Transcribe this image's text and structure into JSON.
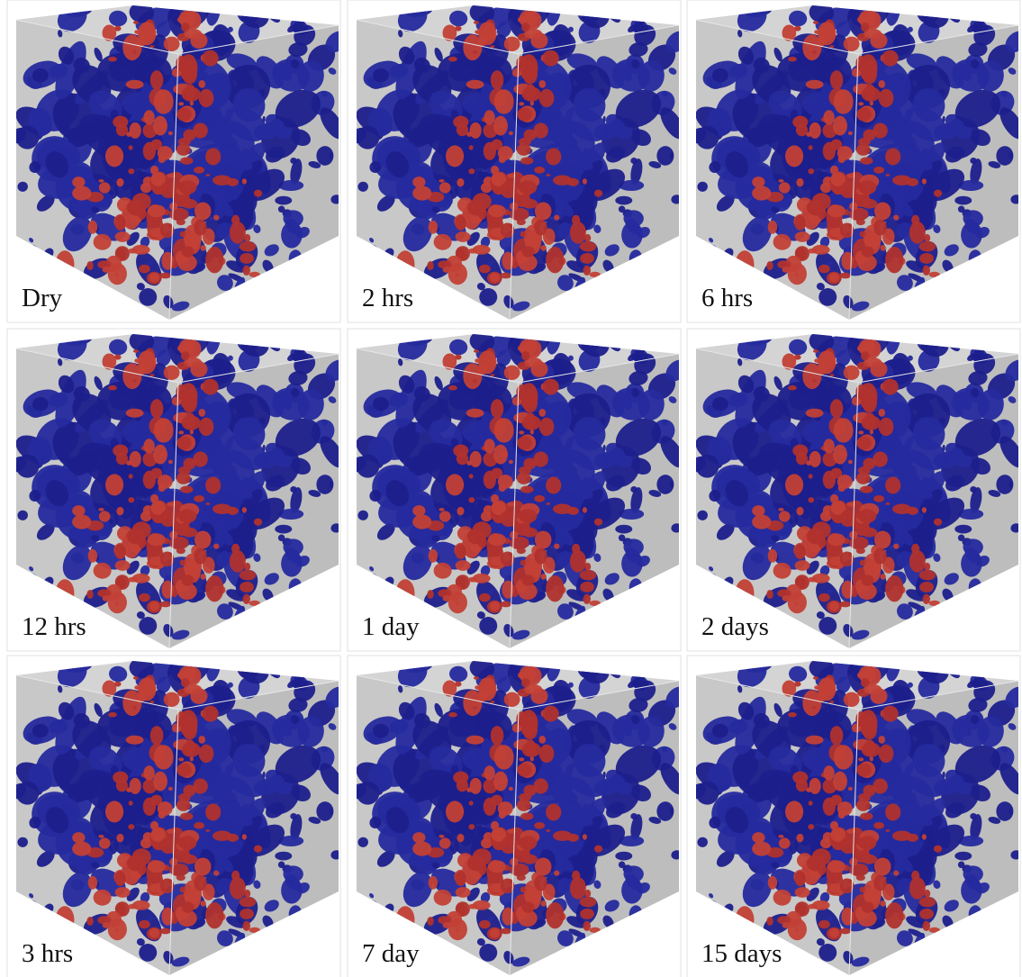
{
  "panels": [
    {
      "label": "Dry"
    },
    {
      "label": "2 hrs"
    },
    {
      "label": "6 hrs"
    },
    {
      "label": "12 hrs"
    },
    {
      "label": "1 day"
    },
    {
      "label": "2 days"
    },
    {
      "label": "3 hrs"
    },
    {
      "label": "7 day"
    },
    {
      "label": "15 days"
    }
  ]
}
